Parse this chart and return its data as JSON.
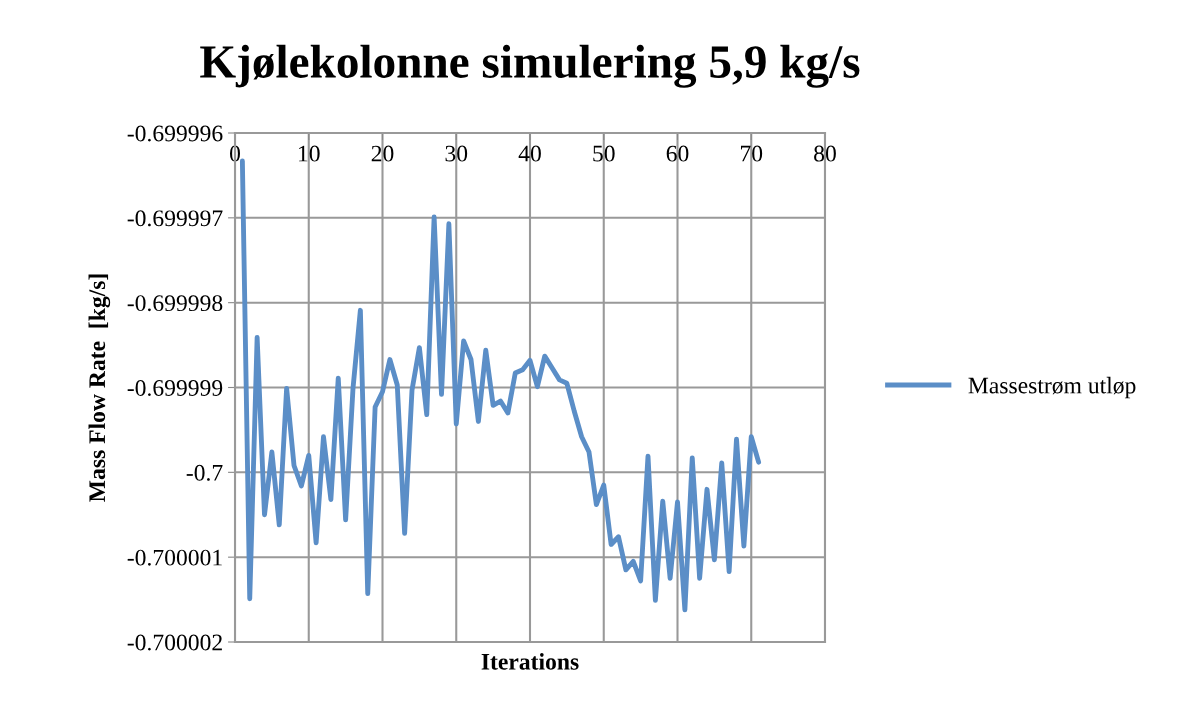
{
  "chart_data": {
    "type": "line",
    "title": "Kjølekolonne simulering 5,9 kg/s",
    "xlabel": "Iterations",
    "ylabel": "Mass Flow Rate  [kg/s]",
    "x": [
      1,
      2,
      3,
      4,
      5,
      6,
      7,
      8,
      9,
      10,
      11,
      12,
      13,
      14,
      15,
      16,
      17,
      18,
      19,
      20,
      21,
      22,
      23,
      24,
      25,
      26,
      27,
      28,
      29,
      30,
      31,
      32,
      33,
      34,
      35,
      36,
      37,
      38,
      39,
      40,
      41,
      42,
      43,
      44,
      45,
      46,
      47,
      48,
      49,
      50,
      51,
      52,
      53,
      54,
      55,
      56,
      57,
      58,
      59,
      60,
      61,
      62,
      63,
      64,
      65,
      66,
      67,
      68,
      69,
      70,
      71
    ],
    "series": [
      {
        "name": "Massestrøm utløp",
        "color": "#5b8ec7",
        "values": [
          -0.69999633,
          -0.70000149,
          -0.69999841,
          -0.7000005,
          -0.69999976,
          -0.70000062,
          -0.69999901,
          -0.69999992,
          -0.70000016,
          -0.6999998,
          -0.70000083,
          -0.69999958,
          -0.70000032,
          -0.69999889,
          -0.70000056,
          -0.69999901,
          -0.69999809,
          -0.70000143,
          -0.69999923,
          -0.69999905,
          -0.69999867,
          -0.69999897,
          -0.70000072,
          -0.69999903,
          -0.69999853,
          -0.69999932,
          -0.69999699,
          -0.69999908,
          -0.69999707,
          -0.69999943,
          -0.69999845,
          -0.69999867,
          -0.6999994,
          -0.69999856,
          -0.69999921,
          -0.69999916,
          -0.6999993,
          -0.69999883,
          -0.69999879,
          -0.69999868,
          -0.69999899,
          -0.69999863,
          -0.69999877,
          -0.69999891,
          -0.69999895,
          -0.69999928,
          -0.69999958,
          -0.69999976,
          -0.70000038,
          -0.70000015,
          -0.70000085,
          -0.70000076,
          -0.70000115,
          -0.70000105,
          -0.70000128,
          -0.69999981,
          -0.70000151,
          -0.70000034,
          -0.70000125,
          -0.70000035,
          -0.70000162,
          -0.69999983,
          -0.70000125,
          -0.7000002,
          -0.70000103,
          -0.69999989,
          -0.70000117,
          -0.69999961,
          -0.70000087,
          -0.69999958,
          -0.69999988
        ]
      }
    ],
    "xlim": [
      0,
      80
    ],
    "xticks": [
      0,
      10,
      20,
      30,
      40,
      50,
      60,
      70,
      80
    ],
    "ylim": [
      -0.700002,
      -0.699996
    ],
    "yticks": [
      -0.700002,
      -0.700001,
      -0.7,
      -0.699999,
      -0.699998,
      -0.699997,
      -0.699996
    ],
    "grid": true,
    "legend": "right",
    "marker": "none",
    "line_style": "solid"
  }
}
